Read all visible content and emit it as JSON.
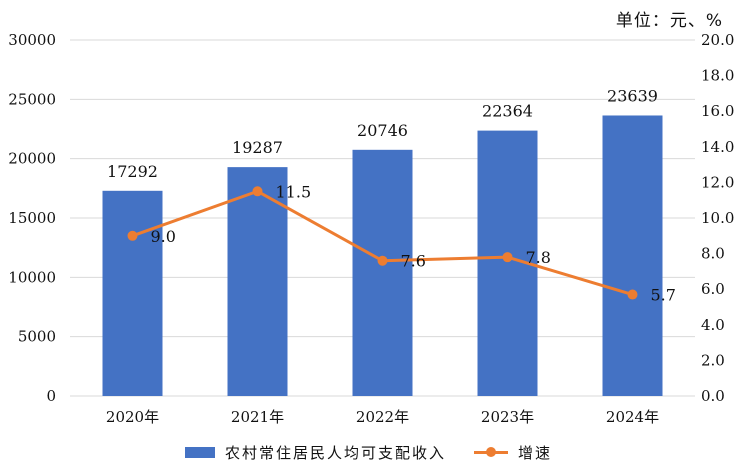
{
  "unit_label": "单位：元、%",
  "chart_data": {
    "type": "bar",
    "categories": [
      "2020年",
      "2021年",
      "2022年",
      "2023年",
      "2024年"
    ],
    "series": [
      {
        "name": "农村常住居民人均可支配收入",
        "type": "bar",
        "axis": "left",
        "values": [
          17292,
          19287,
          20746,
          22364,
          23639
        ]
      },
      {
        "name": "增速",
        "type": "line",
        "axis": "right",
        "values": [
          9.0,
          11.5,
          7.6,
          7.8,
          5.7
        ]
      }
    ],
    "y_left": {
      "min": 0,
      "max": 30000,
      "step": 5000,
      "ticks": [
        "0",
        "5000",
        "10000",
        "15000",
        "20000",
        "25000",
        "30000"
      ]
    },
    "y_right": {
      "min": 0,
      "max": 20,
      "step": 2,
      "ticks": [
        "0.0",
        "2.0",
        "4.0",
        "6.0",
        "8.0",
        "10.0",
        "12.0",
        "14.0",
        "16.0",
        "18.0",
        "20.0"
      ]
    },
    "grid": true,
    "legend_position": "bottom",
    "colors": {
      "bar": "#4472c4",
      "line": "#ed7d31",
      "grid": "#d9d9d9"
    }
  }
}
